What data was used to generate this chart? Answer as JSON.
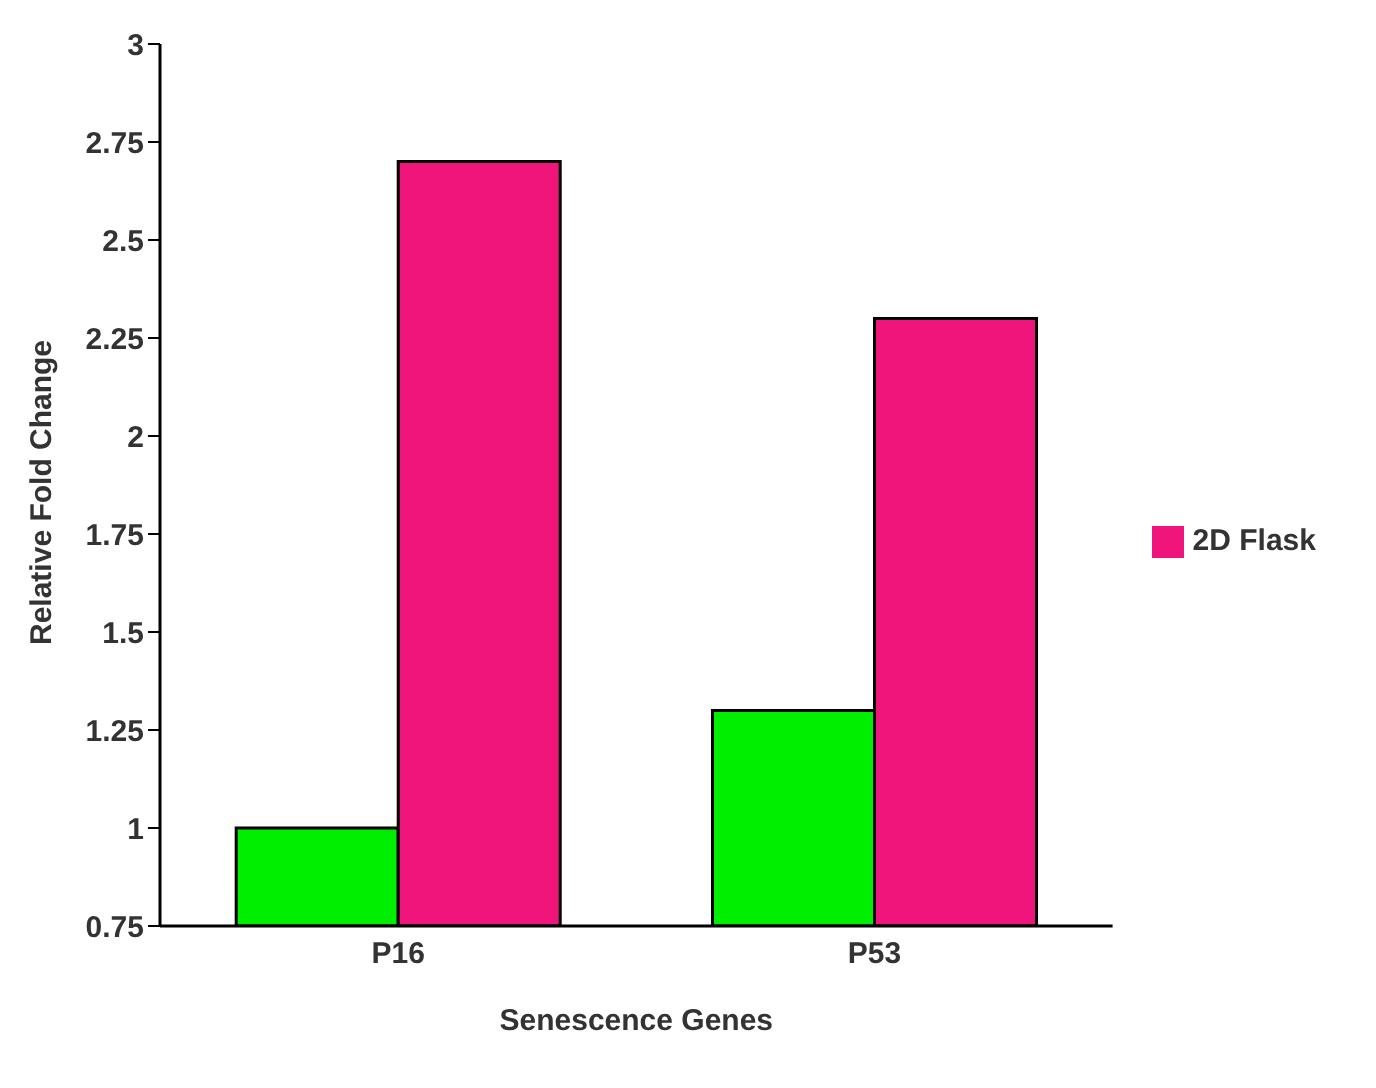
{
  "chart_data": {
    "type": "bar",
    "xlabel": "Senescence Genes",
    "ylabel": "Relative Fold Change",
    "categories": [
      "P16",
      "P53"
    ],
    "series": [
      {
        "color": "#00ee00",
        "values": [
          1.0,
          1.3
        ]
      },
      {
        "name": "2D Flask",
        "color": "#f0157a",
        "values": [
          2.7,
          2.3
        ]
      }
    ],
    "ylim": [
      0.75,
      3
    ],
    "yticks": [
      0.75,
      1,
      1.25,
      1.5,
      1.75,
      2,
      2.25,
      2.5,
      2.75,
      3
    ],
    "grid": false,
    "legend": "right"
  }
}
